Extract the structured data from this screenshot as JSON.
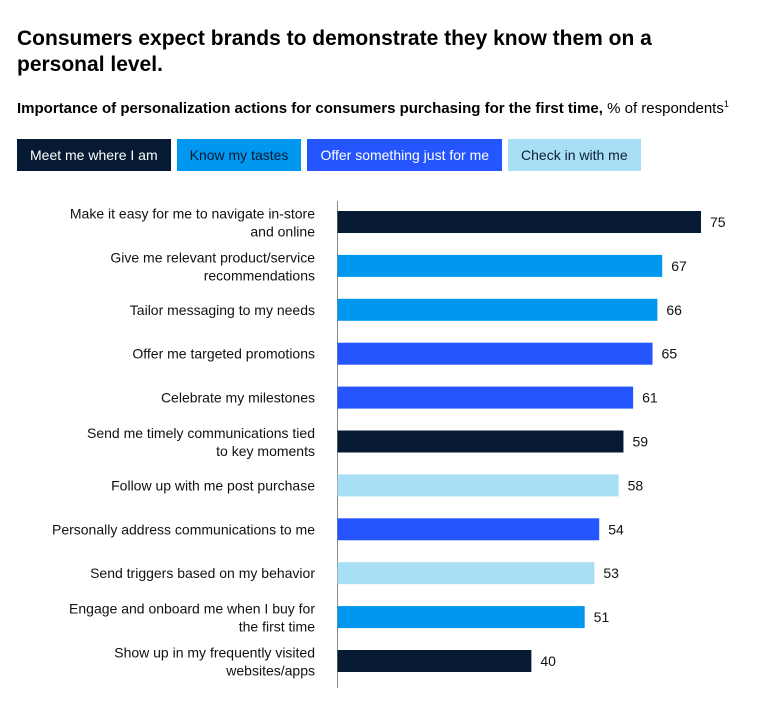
{
  "title": "Consumers expect brands to demonstrate they know them on a personal level.",
  "subtitle": {
    "bold": "Importance of personalization actions for consumers purchasing for the first time,",
    "rest": " % of respondents",
    "footnote_mark": "1"
  },
  "colors": {
    "meet": "#061a33",
    "know": "#0097f0",
    "offer": "#2455ff",
    "check": "#a8dff4"
  },
  "chart_data": {
    "type": "bar",
    "orientation": "horizontal",
    "legend": [
      {
        "name": "Meet me where I am",
        "key": "meet"
      },
      {
        "name": "Know my tastes",
        "key": "know"
      },
      {
        "name": "Offer something just for me",
        "key": "offer"
      },
      {
        "name": "Check in with me",
        "key": "check"
      }
    ],
    "categories": [
      [
        "Make it easy for me to navigate in-store",
        "and online"
      ],
      [
        "Give me relevant product/service",
        "recommendations"
      ],
      [
        "Tailor messaging to my needs"
      ],
      [
        "Offer me targeted promotions"
      ],
      [
        "Celebrate my milestones"
      ],
      [
        "Send me timely communications tied",
        "to key moments"
      ],
      [
        "Follow up with me post purchase"
      ],
      [
        "Personally address communications to me"
      ],
      [
        "Send triggers based on my behavior"
      ],
      [
        "Engage and onboard me when I buy for",
        "the first time"
      ],
      [
        "Show up in my frequently visited",
        "websites/apps"
      ]
    ],
    "values": [
      75,
      67,
      66,
      65,
      61,
      59,
      58,
      54,
      53,
      51,
      40
    ],
    "series_keys": [
      "meet",
      "know",
      "know",
      "offer",
      "offer",
      "meet",
      "check",
      "offer",
      "check",
      "know",
      "meet"
    ],
    "xlim": [
      0,
      80
    ],
    "grid": false
  }
}
